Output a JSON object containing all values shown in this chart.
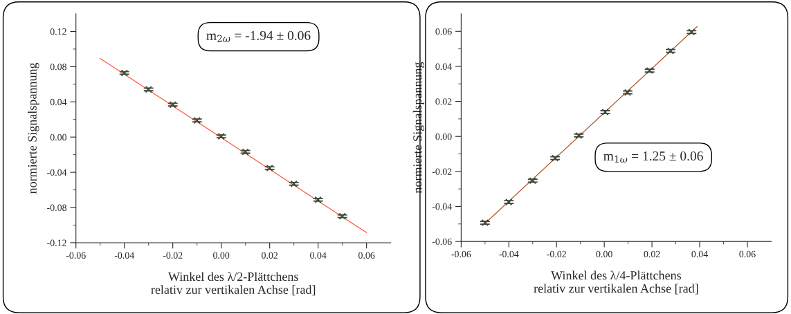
{
  "chart_data": [
    {
      "type": "scatter",
      "xlabel": "Winkel des λ/2-Plättchens\nrelativ zur vertikalen Achse [rad]",
      "ylabel": "normierte Signalspannung",
      "xlim": [
        -0.06,
        0.07
      ],
      "ylim": [
        -0.12,
        0.14
      ],
      "xticks": [
        -0.06,
        -0.04,
        -0.02,
        {
          "value": 0,
          "label": "0.00"
        },
        0.02,
        0.04,
        0.06
      ],
      "yticks": [
        -0.12,
        -0.08,
        -0.04,
        {
          "value": 0,
          "label": "0.00"
        },
        0.04,
        0.08,
        0.12
      ],
      "grid": false,
      "annotations": [
        "m$_{2ω}$ = -1.94 ± 0.06"
      ],
      "series": [
        {
          "color": "#3c4a3c",
          "marker": "cross",
          "x": [
            -0.04,
            -0.03,
            -0.02,
            -0.01,
            0,
            0.01,
            0.02,
            0.03,
            0.04,
            0.05
          ],
          "values": [
            0.0728,
            0.0541,
            0.0368,
            0.0189,
            0.0008,
            -0.0168,
            -0.0352,
            -0.0531,
            -0.0712,
            -0.0899
          ],
          "errors": [
            0.0015,
            0.0015,
            0.0015,
            0.0015,
            0.0015,
            0.0015,
            0.0015,
            0.0015,
            0.0015,
            0.0015
          ]
        },
        {
          "type": "line",
          "color": "#ff5a3c",
          "x": [
            -0.05,
            0.06
          ],
          "values": [
            0.0893,
            -0.1085
          ]
        }
      ]
    },
    {
      "type": "scatter",
      "xlabel": "Winkel des λ/4-Plättchens\nrelativ zur vertikalen Achse [rad]",
      "ylabel": "normierte Signalspannung",
      "xlim": [
        -0.06,
        0.07
      ],
      "ylim": [
        -0.06,
        0.07
      ],
      "xticks": [
        -0.06,
        -0.04,
        -0.02,
        {
          "value": 0,
          "label": "0.00"
        },
        0.02,
        0.04,
        0.06
      ],
      "yticks": [
        -0.06,
        -0.04,
        -0.02,
        {
          "value": 0,
          "label": "0.00"
        },
        0.02,
        0.04,
        0.06
      ],
      "grid": false,
      "annotations": [
        "m$_{1ω}$ = 1.25 ± 0.06"
      ],
      "series": [
        {
          "color": "#3c4a3c",
          "marker": "cross",
          "x": [
            -0.05,
            -0.04,
            -0.03,
            -0.0206,
            -0.0107,
            0.0004,
            0.0098,
            0.019,
            0.0278,
            0.0366
          ],
          "values": [
            -0.0493,
            -0.0375,
            -0.0253,
            -0.0124,
            0.0005,
            0.0139,
            0.0251,
            0.0376,
            0.0488,
            0.0596
          ],
          "errors": [
            0.0008,
            0.0008,
            0.0008,
            0.0008,
            0.0008,
            0.0008,
            0.0008,
            0.0008,
            0.0008,
            0.0008
          ]
        },
        {
          "type": "line",
          "color": "#b5562a",
          "x": [
            -0.05,
            0.0389
          ],
          "values": [
            -0.0497,
            0.0627
          ]
        }
      ]
    }
  ]
}
